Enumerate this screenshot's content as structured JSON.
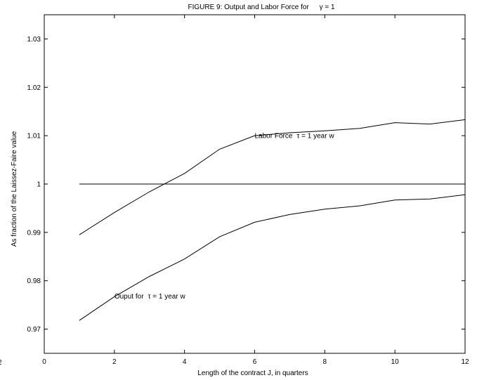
{
  "chart_data": {
    "type": "line",
    "title": "FIGURE 9: Output and Labor Force for",
    "title_symbol": "γ = 1",
    "xlabel": "Length of the contract J, in quarters",
    "ylabel": "As fraction of the Laissez-Faire value",
    "xlim": [
      0,
      12
    ],
    "ylim": [
      0.965,
      1.035
    ],
    "x_ticks": [
      0,
      2,
      4,
      6,
      8,
      10,
      12
    ],
    "x_tick_labels": [
      "0",
      "2",
      "4",
      "6",
      "8",
      "10",
      "12"
    ],
    "left_edge_label": "2",
    "y_ticks": [
      0.97,
      0.98,
      0.99,
      1.0,
      1.01,
      1.02,
      1.03
    ],
    "y_tick_labels": [
      "0.97",
      "0.98",
      "0.99",
      "1",
      "1.01",
      "1.02",
      "1.03"
    ],
    "grid": false,
    "series": [
      {
        "name": "Labor Force",
        "label_tau": "τ = 1 year w",
        "x": [
          1,
          2,
          3,
          4,
          5,
          6,
          7,
          8,
          9,
          10,
          11,
          12
        ],
        "values": [
          0.9895,
          0.9941,
          0.9984,
          1.0022,
          1.0072,
          1.01,
          1.0106,
          1.011,
          1.0115,
          1.0127,
          1.0124,
          1.0133
        ],
        "label_x": 6.0,
        "label_y": 1.0095
      },
      {
        "name": "Ouput for",
        "label_tau": "τ = 1 year w",
        "x": [
          1,
          2,
          3,
          4,
          5,
          6,
          7,
          8,
          9,
          10,
          11,
          12
        ],
        "values": [
          0.9718,
          0.9767,
          0.9809,
          0.9845,
          0.9891,
          0.9921,
          0.9937,
          0.9948,
          0.9955,
          0.9967,
          0.9969,
          0.9978
        ],
        "label_x": 2.0,
        "label_y": 0.9763
      },
      {
        "name": "",
        "x": [
          1,
          12
        ],
        "values": [
          1.0,
          1.0
        ]
      }
    ]
  }
}
